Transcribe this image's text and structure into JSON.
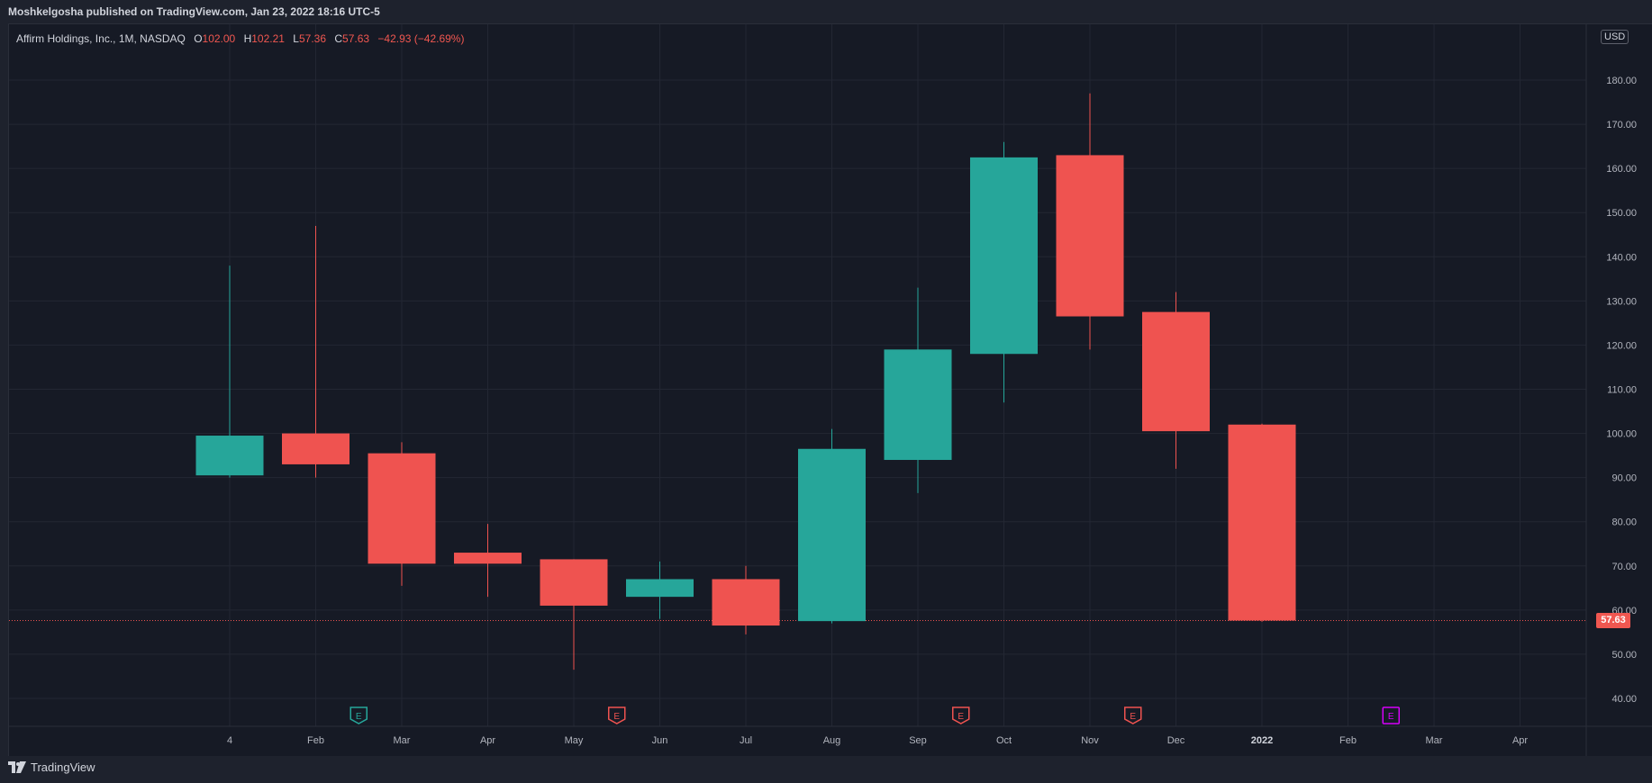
{
  "header": {
    "publish_line": "Moshkelgosha published on TradingView.com, Jan 23, 2022 18:16 UTC-5"
  },
  "legend": {
    "symbol": "Affirm Holdings, Inc., 1M, NASDAQ",
    "open_label": "O",
    "open_value": "102.00",
    "high_label": "H",
    "high_value": "102.21",
    "low_label": "L",
    "low_value": "57.36",
    "close_label": "C",
    "close_value": "57.63",
    "change": "−42.93 (−42.69%)"
  },
  "currency": "USD",
  "price_badge": "57.63",
  "footer": {
    "brand": "TradingView"
  },
  "colors": {
    "up": "#26a69a",
    "down": "#ef5350",
    "background": "#161a25",
    "grid": "#232733",
    "text": "#b2b5be",
    "earnings_past_up": "#26a69a",
    "earnings_past_down": "#ef5350",
    "earnings_future": "#d500f9"
  },
  "chart_data": {
    "type": "candlestick",
    "interval": "1M",
    "y_axis": {
      "ticks": [
        "40.00",
        "50.00",
        "60.00",
        "70.00",
        "80.00",
        "90.00",
        "100.00",
        "110.00",
        "120.00",
        "130.00",
        "140.00",
        "150.00",
        "160.00",
        "170.00",
        "180.00"
      ],
      "ylim": [
        33.8,
        193
      ],
      "position": "right"
    },
    "x_axis": {
      "labels": [
        "4",
        "Feb",
        "Mar",
        "Apr",
        "May",
        "Jun",
        "Jul",
        "Aug",
        "Sep",
        "Oct",
        "Nov",
        "Dec",
        "2022",
        "Feb",
        "Mar",
        "Apr"
      ],
      "bold_labels": [
        "2022"
      ]
    },
    "candles": [
      {
        "o": 90.5,
        "h": 138,
        "l": 90,
        "c": 99.5
      },
      {
        "o": 100,
        "h": 147,
        "l": 90,
        "c": 93
      },
      {
        "o": 95.5,
        "h": 98,
        "l": 65.5,
        "c": 70.5
      },
      {
        "o": 73,
        "h": 79.5,
        "l": 63,
        "c": 70.5
      },
      {
        "o": 71.5,
        "h": 71.5,
        "l": 46.5,
        "c": 61
      },
      {
        "o": 63,
        "h": 71,
        "l": 58,
        "c": 67
      },
      {
        "o": 67,
        "h": 70,
        "l": 54.5,
        "c": 56.5
      },
      {
        "o": 57.5,
        "h": 101,
        "l": 57,
        "c": 96.5
      },
      {
        "o": 94,
        "h": 133,
        "l": 86.5,
        "c": 119
      },
      {
        "o": 118,
        "h": 166,
        "l": 107,
        "c": 162.5
      },
      {
        "o": 163,
        "h": 177,
        "l": 119,
        "c": 126.5
      },
      {
        "o": 127.5,
        "h": 132,
        "l": 92,
        "c": 100.5
      },
      {
        "o": 102,
        "h": 102.21,
        "l": 57.36,
        "c": 57.63
      }
    ],
    "last_price": 57.63,
    "earnings_markers": [
      {
        "label": "E",
        "after_candle": 1,
        "kind": "past_up"
      },
      {
        "label": "E",
        "after_candle": 4,
        "kind": "past_down"
      },
      {
        "label": "E",
        "after_candle": 8,
        "kind": "past_down"
      },
      {
        "label": "E",
        "after_candle": 10,
        "kind": "past_down"
      },
      {
        "label": "E",
        "after_candle": 13,
        "kind": "future"
      }
    ],
    "grid": true,
    "legend_position": "top-left"
  }
}
